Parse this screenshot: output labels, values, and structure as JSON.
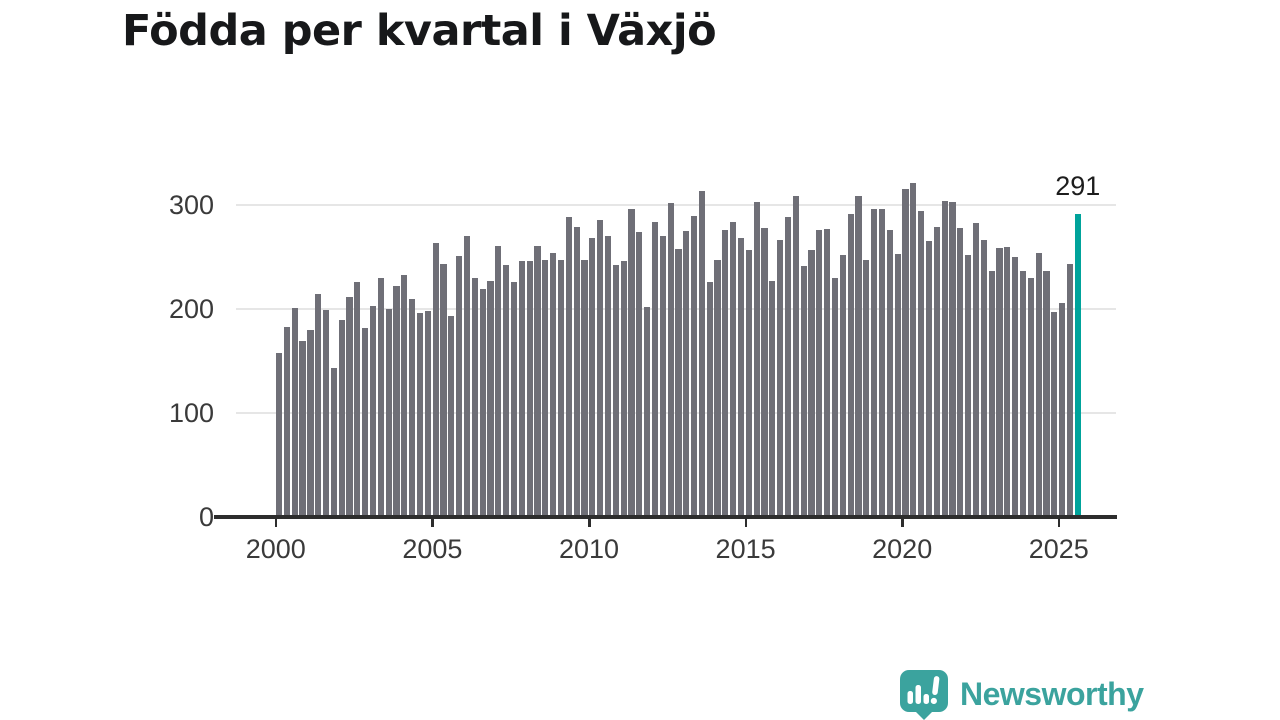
{
  "title": "Födda per kvartal i Växjö",
  "chart_data": {
    "type": "bar",
    "title": "Födda per kvartal i Växjö",
    "xlabel": "",
    "ylabel": "",
    "x_start": "2000 Q1",
    "x_end": "2025 Q3",
    "x_tick_labels": [
      "2000",
      "2005",
      "2010",
      "2015",
      "2020",
      "2025"
    ],
    "x_tick_quarter_indices": [
      0,
      20,
      40,
      60,
      80,
      100
    ],
    "y_ticks": [
      0,
      100,
      200,
      300
    ],
    "ylim": [
      0,
      334
    ],
    "grid": "horizontal-only",
    "legend": "none",
    "bar_color": "#6f6f77",
    "highlight_color": "#00a39b",
    "highlight_index": 102,
    "highlight_label": "291",
    "values": [
      158,
      183,
      201,
      169,
      180,
      214,
      199,
      143,
      189,
      212,
      226,
      182,
      203,
      230,
      200,
      222,
      233,
      210,
      196,
      198,
      263,
      243,
      193,
      251,
      270,
      230,
      219,
      227,
      261,
      242,
      226,
      246,
      246,
      261,
      247,
      254,
      247,
      288,
      279,
      247,
      268,
      286,
      270,
      242,
      246,
      296,
      274,
      202,
      284,
      270,
      302,
      258,
      275,
      289,
      313,
      226,
      247,
      276,
      284,
      268,
      257,
      303,
      278,
      227,
      266,
      288,
      309,
      241,
      257,
      276,
      277,
      230,
      252,
      291,
      309,
      247,
      296,
      296,
      276,
      253,
      315,
      321,
      294,
      265,
      279,
      304,
      303,
      278,
      252,
      283,
      266,
      237,
      259,
      260,
      250,
      237,
      230,
      254,
      237,
      197,
      206,
      243,
      291
    ]
  },
  "branding": {
    "logo_text": "Newsworthy",
    "logo_color": "#3ba39e",
    "logo_icon": "speech-bubble-bar-chart-icon"
  }
}
